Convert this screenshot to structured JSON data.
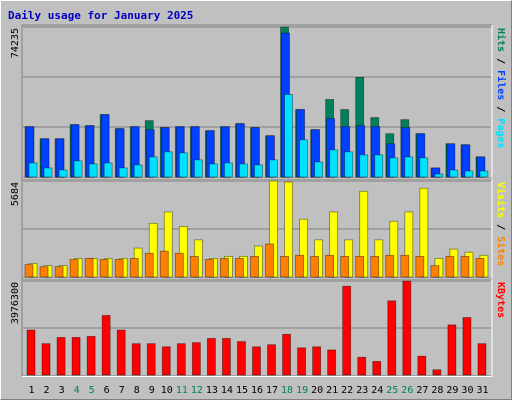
{
  "chart_data": [
    {
      "type": "bar",
      "title": "Daily usage for January 2025",
      "legend_separator": " / ",
      "ylim": [
        0,
        74235
      ],
      "yticks": [
        74235
      ],
      "series": [
        {
          "name": "Hits",
          "color": "#00805c",
          "values": [
            24912,
            18933,
            18933,
            25908,
            25410,
            30890,
            23915,
            24912,
            27900,
            24413,
            24912,
            24912,
            22918,
            24912,
            26406,
            24413,
            20427,
            74235,
            33381,
            23417,
            38364,
            33381,
            49324,
            29395,
            21424,
            28399,
            21424,
            4484,
            16441,
            15943,
            9965
          ]
        },
        {
          "name": "Files",
          "color": "#0040ff",
          "values": [
            24912,
            18933,
            18933,
            25908,
            25410,
            30890,
            23915,
            24912,
            23417,
            24413,
            24912,
            24912,
            22918,
            24912,
            26406,
            24413,
            20427,
            71246,
            33381,
            23417,
            28897,
            24912,
            25410,
            24912,
            16441,
            24413,
            21424,
            4484,
            16441,
            15943,
            9965
          ]
        },
        {
          "name": "Pages",
          "color": "#00e0ff",
          "values": [
            6975,
            4484,
            3487,
            7972,
            6477,
            6975,
            4484,
            5979,
            9965,
            12456,
            11957,
            8470,
            6477,
            6975,
            6477,
            5979,
            8470,
            40855,
            18434,
            7473,
            13452,
            12456,
            10961,
            10961,
            9466,
            9965,
            9466,
            1495,
            3487,
            2989,
            2989
          ]
        }
      ]
    },
    {
      "type": "bar",
      "legend_separator": " / ",
      "ylim": [
        0,
        5684
      ],
      "yticks": [
        5684
      ],
      "series": [
        {
          "name": "Visits",
          "color": "#ffff00",
          "values": [
            794,
            672,
            672,
            1100,
            1100,
            1100,
            1100,
            1711,
            3178,
            3851,
            2995,
            2200,
            1100,
            1222,
            1222,
            1834,
            5684,
            5623,
            3423,
            2200,
            3851,
            2200,
            5073,
            2200,
            3300,
            3851,
            5256,
            1100,
            1650,
            1467,
            1284
          ]
        },
        {
          "name": "Sites",
          "color": "#ff8000",
          "values": [
            733,
            611,
            611,
            1039,
            1100,
            1039,
            1039,
            1100,
            1406,
            1528,
            1406,
            1222,
            1039,
            1100,
            1100,
            1222,
            1956,
            1222,
            1284,
            1222,
            1284,
            1222,
            1222,
            1222,
            1284,
            1284,
            1222,
            672,
            1222,
            1222,
            1100
          ]
        }
      ]
    },
    {
      "type": "bar",
      "ylim": [
        0,
        3976300
      ],
      "yticks": [
        3976300
      ],
      "categories": [
        "1",
        "2",
        "3",
        "4",
        "5",
        "6",
        "7",
        "8",
        "9",
        "10",
        "11",
        "12",
        "13",
        "14",
        "15",
        "16",
        "17",
        "18",
        "19",
        "20",
        "21",
        "22",
        "23",
        "24",
        "25",
        "26",
        "27",
        "28",
        "29",
        "30",
        "31"
      ],
      "label_colors": [
        "#000000",
        "#000000",
        "#000000",
        "#00805c",
        "#00805c",
        "#000000",
        "#000000",
        "#000000",
        "#000000",
        "#000000",
        "#00805c",
        "#00805c",
        "#000000",
        "#000000",
        "#000000",
        "#000000",
        "#000000",
        "#00805c",
        "#00805c",
        "#000000",
        "#000000",
        "#000000",
        "#000000",
        "#000000",
        "#00805c",
        "#00805c",
        "#000000",
        "#000000",
        "#000000",
        "#000000",
        "#000000"
      ],
      "series": [
        {
          "name": "KBytes",
          "color": "#ff0000",
          "values": [
            1899783,
            1325430,
            1590516,
            1590516,
            1634697,
            2518317,
            1899783,
            1325430,
            1325430,
            1192887,
            1325430,
            1369611,
            1546335,
            1546335,
            1413792,
            1192887,
            1281249,
            1723059,
            1148706,
            1192887,
            1060344,
            3755385,
            751077,
            574353,
            3136851,
            3976300,
            795258,
            220905,
            2120688,
            2429955,
            1325430
          ]
        }
      ]
    }
  ]
}
